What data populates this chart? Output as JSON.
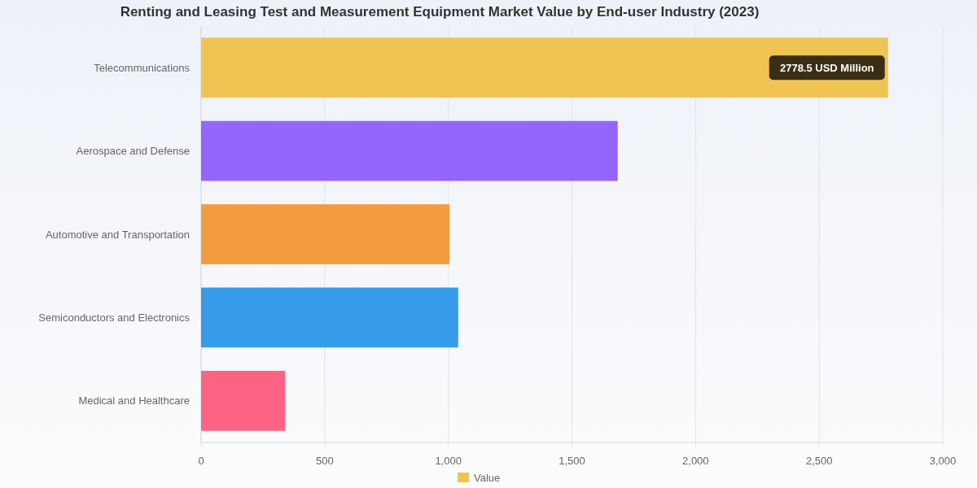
{
  "chart_data": {
    "type": "bar",
    "orientation": "horizontal",
    "title": "Renting and Leasing Test and Measurement Equipment Market Value by End-user Industry (2023)",
    "categories": [
      "Telecommunications",
      "Aerospace and Defense",
      "Automotive and Transportation",
      "Semiconductors and Electronics",
      "Medical and Healthcare"
    ],
    "series": [
      {
        "name": "Value",
        "color": "#f0c453",
        "colors": [
          "#f0c453",
          "#9466fb",
          "#f39b40",
          "#379deb",
          "#ff6384"
        ],
        "values": [
          2778.5,
          1685,
          1005,
          1040,
          340
        ]
      }
    ],
    "xlim": [
      0,
      3000
    ],
    "xticks": [
      0,
      500,
      {
        "value": 1000,
        "label": "1,000"
      },
      {
        "value": 1500,
        "label": "1,500"
      },
      {
        "value": 2000,
        "label": "2,000"
      },
      {
        "value": 2500,
        "label": "2,500"
      },
      {
        "value": 3000,
        "label": "3,000"
      }
    ],
    "grid": "x",
    "legend": "bottom",
    "annotations": [
      {
        "text": "2778.5 USD Million",
        "x": 2778.5,
        "y": "Telecommunications"
      }
    ]
  }
}
